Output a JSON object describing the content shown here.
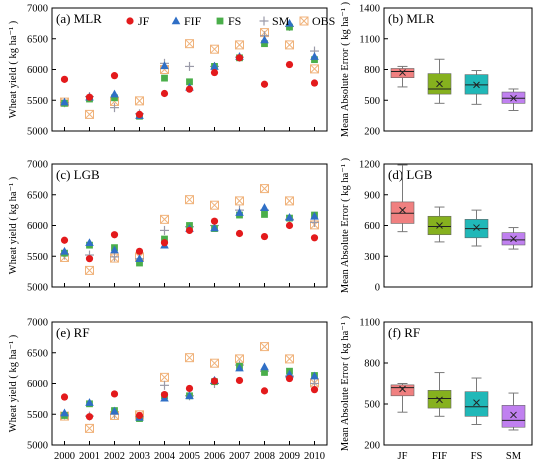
{
  "colors": {
    "JF": "#e31a1c",
    "FIF": "#2f6fc6",
    "FS": "#4aae4a",
    "SM": "#9a9aa8",
    "OBS": "#f0b27a",
    "box_JF": "#f08080",
    "box_FIF": "#86b11e",
    "box_FS": "#20b8b8",
    "box_SM": "#c080f0"
  },
  "chart_data": [
    {
      "type": "scatter",
      "panel": "(a) MLR",
      "ylabel": "Wheat yield ( kg ha⁻¹ )",
      "ylim": [
        5000,
        7000
      ],
      "yticks": [
        "5000",
        "5500",
        "6000",
        "6500",
        "7000"
      ],
      "x": [
        "2000",
        "2001",
        "2002",
        "2003",
        "2004",
        "2005",
        "2006",
        "2007",
        "2008",
        "2009",
        "2010"
      ],
      "show_xticks": false,
      "legend": [
        "JF",
        "FIF",
        "FS",
        "SM",
        "OBS"
      ],
      "series": [
        {
          "name": "JF",
          "values": [
            5840,
            5550,
            5900,
            5270,
            5610,
            5680,
            5950,
            6190,
            5760,
            6080,
            5780
          ]
        },
        {
          "name": "FIF",
          "values": [
            5470,
            5550,
            5600,
            5250,
            6060,
            5710,
            6050,
            6210,
            6480,
            6750,
            6210
          ]
        },
        {
          "name": "FS",
          "values": [
            5450,
            5520,
            5540,
            5240,
            5860,
            5800,
            6050,
            6190,
            6420,
            6690,
            6160
          ]
        },
        {
          "name": "SM",
          "values": [
            5460,
            5560,
            5380,
            5280,
            6100,
            6050,
            6050,
            6200,
            6550,
            6700,
            6300
          ]
        },
        {
          "name": "OBS",
          "values": [
            5470,
            5270,
            5480,
            5490,
            6000,
            6420,
            6330,
            6400,
            6600,
            6400,
            6010
          ]
        }
      ]
    },
    {
      "type": "box",
      "panel": "(b) MLR",
      "ylabel": "Mean Absolute Error ( kg ha⁻¹ )",
      "ylim": [
        200,
        1400
      ],
      "yticks": [
        "200",
        "500",
        "800",
        "1100",
        "1400"
      ],
      "categories": [
        "JF",
        "FIF",
        "FS",
        "SM"
      ],
      "show_xticks": false,
      "boxes": [
        {
          "name": "JF",
          "min": 630,
          "q1": 720,
          "median": 780,
          "q3": 810,
          "max": 830,
          "mean": 770
        },
        {
          "name": "FIF",
          "min": 470,
          "q1": 560,
          "median": 610,
          "q3": 760,
          "max": 900,
          "mean": 660
        },
        {
          "name": "FS",
          "min": 460,
          "q1": 560,
          "median": 650,
          "q3": 750,
          "max": 790,
          "mean": 650
        },
        {
          "name": "SM",
          "min": 400,
          "q1": 470,
          "median": 520,
          "q3": 580,
          "max": 610,
          "mean": 520
        }
      ]
    },
    {
      "type": "scatter",
      "panel": "(c) LGB",
      "ylabel": "Wheat yield ( kg ha⁻¹ )",
      "ylim": [
        5000,
        7000
      ],
      "yticks": [
        "5000",
        "5500",
        "6000",
        "6500",
        "7000"
      ],
      "x": [
        "2000",
        "2001",
        "2002",
        "2003",
        "2004",
        "2005",
        "2006",
        "2007",
        "2008",
        "2009",
        "2010"
      ],
      "show_xticks": false,
      "series": [
        {
          "name": "JF",
          "values": [
            5760,
            5460,
            5850,
            5580,
            5720,
            5920,
            6070,
            5870,
            5820,
            6000,
            5800
          ]
        },
        {
          "name": "FIF",
          "values": [
            5580,
            5720,
            5600,
            5460,
            5680,
            5950,
            5960,
            6210,
            6290,
            6130,
            6150
          ]
        },
        {
          "name": "FS",
          "values": [
            5550,
            5680,
            5640,
            5390,
            5780,
            6000,
            5950,
            6170,
            6180,
            6120,
            6170
          ]
        },
        {
          "name": "SM",
          "values": [
            5520,
            5520,
            5490,
            5460,
            5920,
            5980,
            6000,
            6250,
            6250,
            6100,
            6050
          ]
        },
        {
          "name": "OBS",
          "values": [
            5480,
            5270,
            5470,
            5490,
            6100,
            6420,
            6330,
            6400,
            6600,
            6400,
            6010
          ]
        }
      ]
    },
    {
      "type": "box",
      "panel": "(d) LGB",
      "ylabel": "Mean Absolute Error ( kg ha⁻¹ )",
      "ylim": [
        0,
        1200
      ],
      "yticks": [
        "0",
        "300",
        "600",
        "900",
        "1200"
      ],
      "categories": [
        "JF",
        "FIF",
        "FS",
        "SM"
      ],
      "show_xticks": false,
      "boxes": [
        {
          "name": "JF",
          "min": 540,
          "q1": 620,
          "median": 720,
          "q3": 830,
          "max": 1190,
          "mean": 750
        },
        {
          "name": "FIF",
          "min": 440,
          "q1": 510,
          "median": 590,
          "q3": 690,
          "max": 780,
          "mean": 600
        },
        {
          "name": "FS",
          "min": 400,
          "q1": 480,
          "median": 570,
          "q3": 660,
          "max": 750,
          "mean": 580
        },
        {
          "name": "SM",
          "min": 370,
          "q1": 410,
          "median": 460,
          "q3": 530,
          "max": 580,
          "mean": 470
        }
      ]
    },
    {
      "type": "scatter",
      "panel": "(e) RF",
      "ylabel": "Wheat yield ( kg ha⁻¹ )",
      "ylim": [
        5000,
        7000
      ],
      "yticks": [
        "5000",
        "5500",
        "6000",
        "6500",
        "7000"
      ],
      "x": [
        "2000",
        "2001",
        "2002",
        "2003",
        "2004",
        "2005",
        "2006",
        "2007",
        "2008",
        "2009",
        "2010"
      ],
      "show_xticks": true,
      "series": [
        {
          "name": "JF",
          "values": [
            5780,
            5460,
            5830,
            5480,
            5820,
            5920,
            6040,
            6050,
            5880,
            6080,
            5900
          ]
        },
        {
          "name": "FIF",
          "values": [
            5520,
            5690,
            5550,
            5450,
            5760,
            5800,
            6050,
            6250,
            6270,
            6150,
            6120
          ]
        },
        {
          "name": "FS",
          "values": [
            5480,
            5670,
            5560,
            5430,
            5800,
            5800,
            6030,
            6280,
            6180,
            6200,
            6130
          ]
        },
        {
          "name": "SM",
          "values": [
            5490,
            5470,
            5500,
            5460,
            5970,
            5800,
            6000,
            6300,
            6200,
            6120,
            6000
          ]
        },
        {
          "name": "OBS",
          "values": [
            5470,
            5270,
            5480,
            5490,
            6100,
            6420,
            6330,
            6400,
            6600,
            6400,
            6010
          ]
        }
      ]
    },
    {
      "type": "box",
      "panel": "(f) RF",
      "ylabel": "Mean Absolute Error ( kg ha⁻¹ )",
      "ylim": [
        200,
        1100
      ],
      "yticks": [
        "200",
        "500",
        "800",
        "1100"
      ],
      "categories": [
        "JF",
        "FIF",
        "FS",
        "SM"
      ],
      "show_xticks": true,
      "boxes": [
        {
          "name": "JF",
          "min": 440,
          "q1": 560,
          "median": 620,
          "q3": 640,
          "max": 650,
          "mean": 610
        },
        {
          "name": "FIF",
          "min": 410,
          "q1": 470,
          "median": 540,
          "q3": 600,
          "max": 730,
          "mean": 530
        },
        {
          "name": "FS",
          "min": 350,
          "q1": 410,
          "median": 480,
          "q3": 590,
          "max": 690,
          "mean": 510
        },
        {
          "name": "SM",
          "min": 310,
          "q1": 330,
          "median": 380,
          "q3": 490,
          "max": 580,
          "mean": 420
        }
      ]
    }
  ]
}
